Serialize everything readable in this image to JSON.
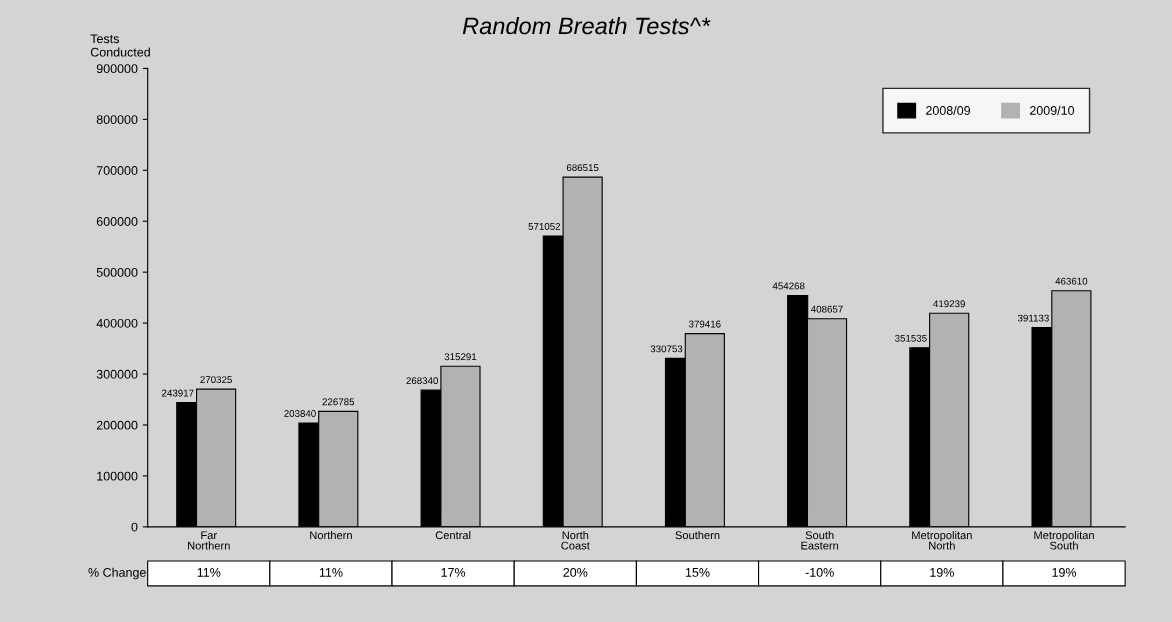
{
  "chart_data": {
    "type": "bar",
    "title": "Random Breath Tests^*",
    "ylabel": "Tests\nConducted",
    "categories": [
      "Far\nNorthern",
      "Northern",
      "Central",
      "North\nCoast",
      "Southern",
      "South\nEastern",
      "Metropolitan\nNorth",
      "Metropolitan\nSouth"
    ],
    "series": [
      {
        "name": "2008/09",
        "color": "#000000",
        "values": [
          243917,
          203840,
          268340,
          571052,
          330753,
          454268,
          351535,
          391133
        ]
      },
      {
        "name": "2009/10",
        "color": "#b2b2b2",
        "values": [
          270325,
          226785,
          315291,
          686515,
          379416,
          408657,
          419239,
          463610
        ]
      }
    ],
    "ylim": [
      0,
      900000
    ],
    "yticks": [
      0,
      100000,
      200000,
      300000,
      400000,
      500000,
      600000,
      700000,
      800000,
      900000
    ],
    "data_labels": true,
    "legend": "top right",
    "grid": false,
    "annotations": [
      "% Change",
      "11%",
      "11%",
      "17%",
      "20%",
      "15%",
      "-10%",
      "19%",
      "19%"
    ]
  }
}
